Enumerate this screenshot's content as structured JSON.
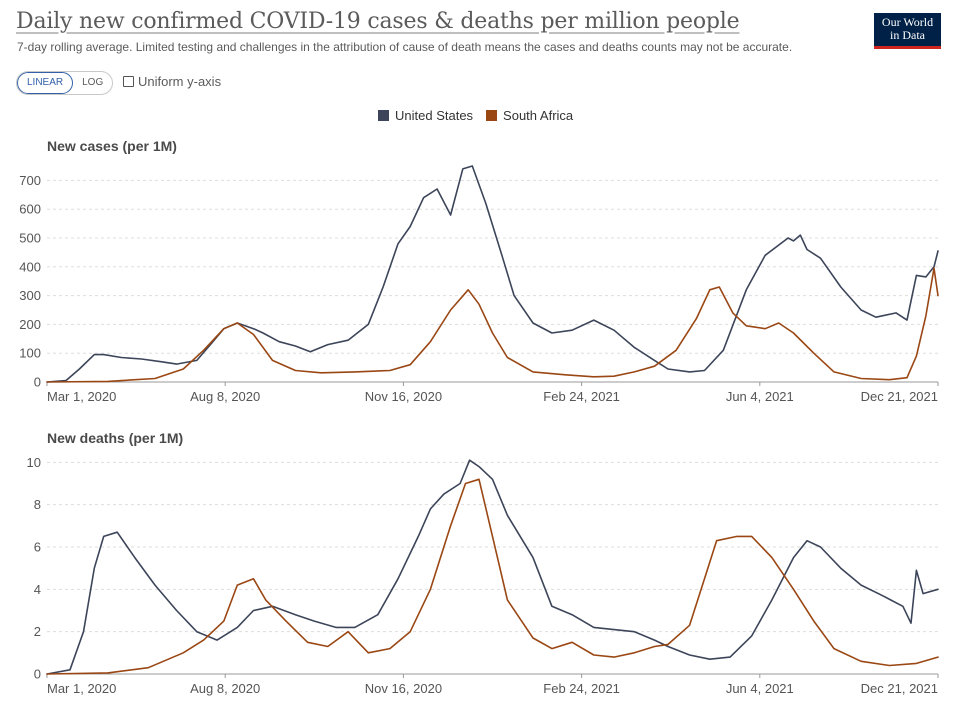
{
  "header": {
    "title": "Daily new confirmed COVID-19 cases & deaths per million people",
    "subtitle": "7-day rolling average. Limited testing and challenges in the attribution of cause of death means the cases and deaths counts may not be accurate.",
    "logo_line1": "Our World",
    "logo_line2": "in Data"
  },
  "controls": {
    "linear_label": "LINEAR",
    "log_label": "LOG",
    "active_scale": "linear",
    "uniform_label": "Uniform y-axis",
    "uniform_checked": false
  },
  "colors": {
    "united_states": "#3c4559",
    "south_africa": "#9a4714",
    "grid": "#dddddd",
    "baseline": "#999999",
    "logo_bg": "#002147",
    "logo_accent": "#ce261e",
    "active_toggle": "#3360a9"
  },
  "chart_data": [
    {
      "type": "line",
      "title": "New cases (per 1M)",
      "ylim": [
        0,
        750
      ],
      "yticks": [
        0,
        100,
        200,
        300,
        400,
        500,
        600,
        700
      ],
      "xlim": [
        "2020-03-01",
        "2021-12-21"
      ],
      "xticks": [
        "Mar 1, 2020",
        "Aug 8, 2020",
        "Nov 16, 2020",
        "Feb 24, 2021",
        "Jun 4, 2021",
        "Dec 21, 2021"
      ],
      "grid": true,
      "legend": "top-center",
      "series": [
        {
          "name": "United States",
          "color": "#3c4559",
          "points": [
            [
              "2020-03-01",
              0
            ],
            [
              "2020-03-15",
              5
            ],
            [
              "2020-03-25",
              45
            ],
            [
              "2020-04-05",
              95
            ],
            [
              "2020-04-12",
              95
            ],
            [
              "2020-04-25",
              85
            ],
            [
              "2020-05-10",
              80
            ],
            [
              "2020-05-25",
              70
            ],
            [
              "2020-06-05",
              62
            ],
            [
              "2020-06-20",
              75
            ],
            [
              "2020-07-01",
              135
            ],
            [
              "2020-07-10",
              185
            ],
            [
              "2020-07-20",
              205
            ],
            [
              "2020-08-01",
              185
            ],
            [
              "2020-08-08",
              170
            ],
            [
              "2020-08-20",
              140
            ],
            [
              "2020-09-01",
              125
            ],
            [
              "2020-09-12",
              105
            ],
            [
              "2020-09-25",
              130
            ],
            [
              "2020-10-10",
              145
            ],
            [
              "2020-10-25",
              200
            ],
            [
              "2020-11-05",
              330
            ],
            [
              "2020-11-16",
              480
            ],
            [
              "2020-11-25",
              540
            ],
            [
              "2020-12-05",
              640
            ],
            [
              "2020-12-15",
              670
            ],
            [
              "2020-12-25",
              580
            ],
            [
              "2021-01-03",
              740
            ],
            [
              "2021-01-10",
              750
            ],
            [
              "2021-01-20",
              620
            ],
            [
              "2021-02-01",
              440
            ],
            [
              "2021-02-10",
              300
            ],
            [
              "2021-02-24",
              205
            ],
            [
              "2021-03-10",
              170
            ],
            [
              "2021-03-25",
              180
            ],
            [
              "2021-04-10",
              215
            ],
            [
              "2021-04-25",
              180
            ],
            [
              "2021-05-10",
              120
            ],
            [
              "2021-05-25",
              75
            ],
            [
              "2021-06-04",
              45
            ],
            [
              "2021-06-20",
              35
            ],
            [
              "2021-07-01",
              40
            ],
            [
              "2021-07-15",
              110
            ],
            [
              "2021-08-01",
              320
            ],
            [
              "2021-08-15",
              440
            ],
            [
              "2021-09-01",
              500
            ],
            [
              "2021-09-05",
              490
            ],
            [
              "2021-09-10",
              510
            ],
            [
              "2021-09-15",
              460
            ],
            [
              "2021-09-25",
              430
            ],
            [
              "2021-10-10",
              330
            ],
            [
              "2021-10-25",
              250
            ],
            [
              "2021-11-05",
              225
            ],
            [
              "2021-11-20",
              240
            ],
            [
              "2021-11-28",
              215
            ],
            [
              "2021-12-05",
              370
            ],
            [
              "2021-12-12",
              365
            ],
            [
              "2021-12-18",
              400
            ],
            [
              "2021-12-21",
              455
            ]
          ]
        },
        {
          "name": "South Africa",
          "color": "#9a4714",
          "points": [
            [
              "2020-03-01",
              0
            ],
            [
              "2020-04-15",
              2
            ],
            [
              "2020-05-20",
              12
            ],
            [
              "2020-06-10",
              45
            ],
            [
              "2020-06-25",
              110
            ],
            [
              "2020-07-10",
              185
            ],
            [
              "2020-07-20",
              205
            ],
            [
              "2020-08-01",
              165
            ],
            [
              "2020-08-15",
              75
            ],
            [
              "2020-09-01",
              40
            ],
            [
              "2020-09-20",
              32
            ],
            [
              "2020-10-15",
              35
            ],
            [
              "2020-11-10",
              40
            ],
            [
              "2020-11-25",
              60
            ],
            [
              "2020-12-10",
              140
            ],
            [
              "2020-12-25",
              250
            ],
            [
              "2021-01-07",
              320
            ],
            [
              "2021-01-15",
              270
            ],
            [
              "2021-01-25",
              170
            ],
            [
              "2021-02-05",
              85
            ],
            [
              "2021-02-24",
              35
            ],
            [
              "2021-03-20",
              25
            ],
            [
              "2021-04-10",
              18
            ],
            [
              "2021-04-25",
              20
            ],
            [
              "2021-05-10",
              35
            ],
            [
              "2021-05-25",
              55
            ],
            [
              "2021-06-10",
              110
            ],
            [
              "2021-06-25",
              220
            ],
            [
              "2021-07-05",
              320
            ],
            [
              "2021-07-12",
              330
            ],
            [
              "2021-07-22",
              240
            ],
            [
              "2021-08-01",
              195
            ],
            [
              "2021-08-15",
              185
            ],
            [
              "2021-08-25",
              205
            ],
            [
              "2021-09-05",
              170
            ],
            [
              "2021-09-20",
              100
            ],
            [
              "2021-10-05",
              35
            ],
            [
              "2021-10-25",
              12
            ],
            [
              "2021-11-15",
              8
            ],
            [
              "2021-11-28",
              15
            ],
            [
              "2021-12-05",
              90
            ],
            [
              "2021-12-12",
              230
            ],
            [
              "2021-12-18",
              395
            ],
            [
              "2021-12-21",
              300
            ]
          ]
        }
      ]
    },
    {
      "type": "line",
      "title": "New deaths (per 1M)",
      "ylim": [
        0,
        10.3
      ],
      "yticks": [
        0,
        2,
        4,
        6,
        8,
        10
      ],
      "xlim": [
        "2020-03-01",
        "2021-12-21"
      ],
      "xticks": [
        "Mar 1, 2020",
        "Aug 8, 2020",
        "Nov 16, 2020",
        "Feb 24, 2021",
        "Jun 4, 2021",
        "Dec 21, 2021"
      ],
      "grid": true,
      "series": [
        {
          "name": "United States",
          "color": "#3c4559",
          "points": [
            [
              "2020-03-01",
              0
            ],
            [
              "2020-03-18",
              0.2
            ],
            [
              "2020-03-28",
              2
            ],
            [
              "2020-04-05",
              5
            ],
            [
              "2020-04-12",
              6.5
            ],
            [
              "2020-04-22",
              6.7
            ],
            [
              "2020-05-05",
              5.5
            ],
            [
              "2020-05-20",
              4.2
            ],
            [
              "2020-06-05",
              3
            ],
            [
              "2020-06-20",
              2
            ],
            [
              "2020-07-05",
              1.6
            ],
            [
              "2020-07-20",
              2.2
            ],
            [
              "2020-08-01",
              3
            ],
            [
              "2020-08-15",
              3.2
            ],
            [
              "2020-09-01",
              2.8
            ],
            [
              "2020-09-15",
              2.5
            ],
            [
              "2020-10-01",
              2.2
            ],
            [
              "2020-10-15",
              2.2
            ],
            [
              "2020-11-01",
              2.8
            ],
            [
              "2020-11-16",
              4.5
            ],
            [
              "2020-12-01",
              6.5
            ],
            [
              "2020-12-10",
              7.8
            ],
            [
              "2020-12-20",
              8.5
            ],
            [
              "2021-01-01",
              9
            ],
            [
              "2021-01-08",
              10.1
            ],
            [
              "2021-01-15",
              9.8
            ],
            [
              "2021-01-25",
              9.2
            ],
            [
              "2021-02-05",
              7.5
            ],
            [
              "2021-02-24",
              5.5
            ],
            [
              "2021-03-10",
              3.2
            ],
            [
              "2021-03-25",
              2.8
            ],
            [
              "2021-04-10",
              2.2
            ],
            [
              "2021-04-25",
              2.1
            ],
            [
              "2021-05-10",
              2
            ],
            [
              "2021-05-25",
              1.6
            ],
            [
              "2021-06-04",
              1.3
            ],
            [
              "2021-06-20",
              0.9
            ],
            [
              "2021-07-05",
              0.7
            ],
            [
              "2021-07-20",
              0.8
            ],
            [
              "2021-08-05",
              1.8
            ],
            [
              "2021-08-20",
              3.5
            ],
            [
              "2021-09-05",
              5.5
            ],
            [
              "2021-09-15",
              6.3
            ],
            [
              "2021-09-25",
              6
            ],
            [
              "2021-10-10",
              5
            ],
            [
              "2021-10-25",
              4.2
            ],
            [
              "2021-11-10",
              3.7
            ],
            [
              "2021-11-25",
              3.2
            ],
            [
              "2021-12-01",
              2.4
            ],
            [
              "2021-12-05",
              4.9
            ],
            [
              "2021-12-10",
              3.8
            ],
            [
              "2021-12-21",
              4
            ]
          ]
        },
        {
          "name": "South Africa",
          "color": "#9a4714",
          "points": [
            [
              "2020-03-01",
              0
            ],
            [
              "2020-04-15",
              0.05
            ],
            [
              "2020-05-15",
              0.3
            ],
            [
              "2020-06-10",
              1
            ],
            [
              "2020-06-25",
              1.6
            ],
            [
              "2020-07-10",
              2.5
            ],
            [
              "2020-07-20",
              4.2
            ],
            [
              "2020-08-01",
              4.5
            ],
            [
              "2020-08-10",
              3.5
            ],
            [
              "2020-08-25",
              2.5
            ],
            [
              "2020-09-10",
              1.5
            ],
            [
              "2020-09-25",
              1.3
            ],
            [
              "2020-10-10",
              2
            ],
            [
              "2020-10-25",
              1
            ],
            [
              "2020-11-10",
              1.2
            ],
            [
              "2020-11-25",
              2
            ],
            [
              "2020-12-10",
              4
            ],
            [
              "2020-12-25",
              7
            ],
            [
              "2021-01-05",
              9
            ],
            [
              "2021-01-15",
              9.2
            ],
            [
              "2021-01-25",
              6.5
            ],
            [
              "2021-02-05",
              3.5
            ],
            [
              "2021-02-24",
              1.7
            ],
            [
              "2021-03-10",
              1.2
            ],
            [
              "2021-03-25",
              1.5
            ],
            [
              "2021-04-10",
              0.9
            ],
            [
              "2021-04-25",
              0.8
            ],
            [
              "2021-05-10",
              1
            ],
            [
              "2021-05-25",
              1.3
            ],
            [
              "2021-06-04",
              1.4
            ],
            [
              "2021-06-20",
              2.3
            ],
            [
              "2021-07-01",
              4.5
            ],
            [
              "2021-07-10",
              6.3
            ],
            [
              "2021-07-25",
              6.5
            ],
            [
              "2021-08-05",
              6.5
            ],
            [
              "2021-08-20",
              5.5
            ],
            [
              "2021-09-05",
              4
            ],
            [
              "2021-09-20",
              2.5
            ],
            [
              "2021-10-05",
              1.2
            ],
            [
              "2021-10-25",
              0.6
            ],
            [
              "2021-11-15",
              0.4
            ],
            [
              "2021-12-05",
              0.5
            ],
            [
              "2021-12-21",
              0.8
            ]
          ]
        }
      ]
    }
  ]
}
